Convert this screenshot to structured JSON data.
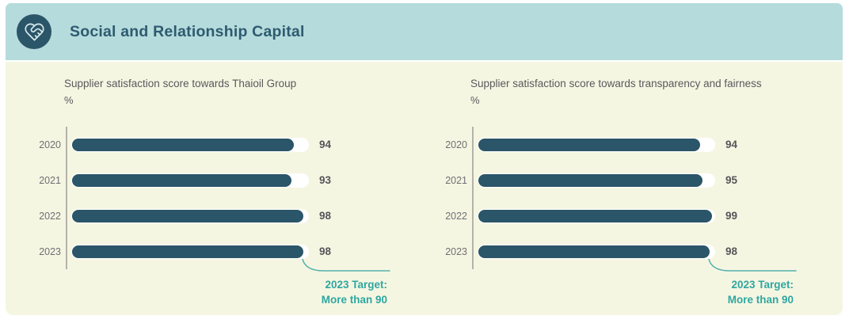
{
  "header": {
    "title": "Social and Relationship Capital",
    "icon": "heart-handshake-icon"
  },
  "colors": {
    "header_bg": "#b5dbdc",
    "body_bg": "#f5f6e2",
    "bar_fill": "#2b5568",
    "bar_track": "#ffffff",
    "accent_teal": "#2fa7a0",
    "title_text": "#2e5b70",
    "axis_line": "#b3b3ab"
  },
  "chart_data": [
    {
      "type": "bar",
      "orientation": "horizontal",
      "title": "Supplier satisfaction score towards Thaioil Group",
      "unit": "%",
      "categories": [
        "2020",
        "2021",
        "2022",
        "2023"
      ],
      "values": [
        94,
        93,
        98,
        98
      ],
      "xlim": [
        0,
        100
      ],
      "grid": false,
      "target_label": "2023 Target:",
      "target_value": "More than 90"
    },
    {
      "type": "bar",
      "orientation": "horizontal",
      "title": "Supplier satisfaction score towards transparency and fairness",
      "unit": "%",
      "categories": [
        "2020",
        "2021",
        "2022",
        "2023"
      ],
      "values": [
        94,
        95,
        99,
        98
      ],
      "xlim": [
        0,
        100
      ],
      "grid": false,
      "target_label": "2023 Target:",
      "target_value": "More than 90"
    }
  ]
}
